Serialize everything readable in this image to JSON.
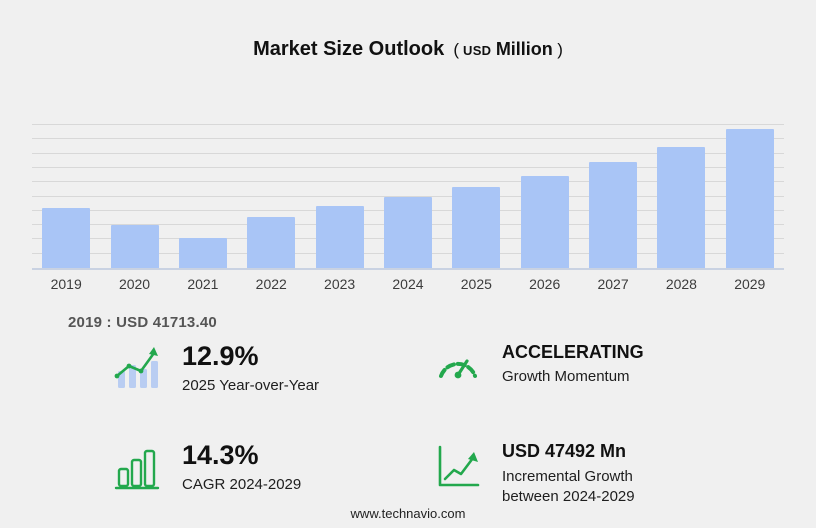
{
  "title": {
    "main": "Market Size Outlook",
    "open": "(",
    "currency": "USD",
    "unit": "Million",
    "close": ")"
  },
  "chart_data": {
    "type": "bar",
    "title": "Market Size Outlook (USD Million)",
    "categories": [
      "2019",
      "2020",
      "2021",
      "2022",
      "2023",
      "2024",
      "2025",
      "2026",
      "2027",
      "2028",
      "2029"
    ],
    "values": [
      41713.4,
      30200,
      21300,
      35600,
      43400,
      49950,
      56390,
      64500,
      73900,
      84600,
      97440
    ],
    "xlabel": "",
    "ylabel": "USD Million",
    "ylim": [
      0,
      100000
    ],
    "ytick_interval": 10000,
    "grid": true,
    "legend": "none",
    "bar_color": "#a9c5f6"
  },
  "base_year_note": "2019 : USD  41713.40",
  "stats": [
    {
      "icon": "yoy-bars-icon",
      "value": "12.9%",
      "label": "2025 Year-over-Year"
    },
    {
      "icon": "gauge-icon",
      "value": "ACCELERATING",
      "label": "Growth Momentum"
    },
    {
      "icon": "cagr-chart-icon",
      "value": "14.3%",
      "label": "CAGR 2024-2029"
    },
    {
      "icon": "incremental-growth-icon",
      "value": "USD 47492 Mn",
      "label": "Incremental Growth between 2024-2029"
    }
  ],
  "footer": {
    "url": "www.technavio.com"
  },
  "colors": {
    "background": "#f0f0f0",
    "bar_blue": "#a9c5f6",
    "accent_green": "#23a84d",
    "gridline": "#d8d8d8"
  }
}
